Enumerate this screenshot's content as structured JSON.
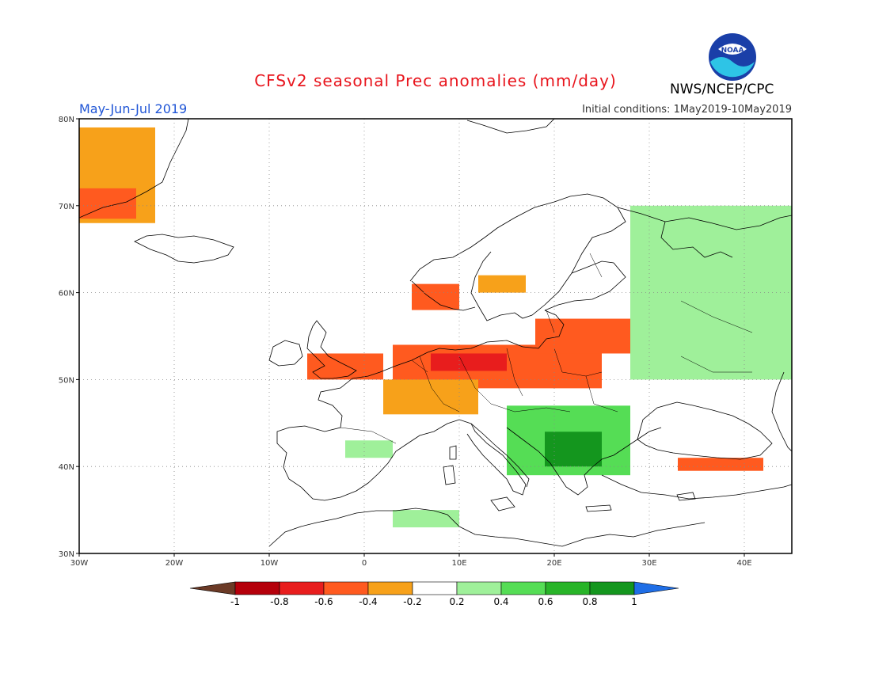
{
  "header": {
    "title": "CFSv2 seasonal Prec anomalies (mm/day)",
    "period": "May-Jun-Jul 2019",
    "initial_conditions": "Initial conditions: 1May2019-10May2019",
    "agency": "NWS/NCEP/CPC",
    "logo_text": "NOAA"
  },
  "map": {
    "lon_range": [
      -30,
      45
    ],
    "lat_range": [
      30,
      80
    ],
    "lon_ticks": [
      {
        "value": -30,
        "label": "30W"
      },
      {
        "value": -20,
        "label": "20W"
      },
      {
        "value": -10,
        "label": "10W"
      },
      {
        "value": 0,
        "label": "0"
      },
      {
        "value": 10,
        "label": "10E"
      },
      {
        "value": 20,
        "label": "20E"
      },
      {
        "value": 30,
        "label": "30E"
      },
      {
        "value": 40,
        "label": "40E"
      }
    ],
    "lat_ticks": [
      {
        "value": 30,
        "label": "30N"
      },
      {
        "value": 40,
        "label": "40N"
      },
      {
        "value": 50,
        "label": "50N"
      },
      {
        "value": 60,
        "label": "60N"
      },
      {
        "value": 70,
        "label": "70N"
      },
      {
        "value": 80,
        "label": "80N"
      }
    ],
    "grid": "dotted",
    "coastline_color": "#000000"
  },
  "colorbar": {
    "labels": [
      "-1",
      "-0.8",
      "-0.6",
      "-0.4",
      "-0.2",
      "0.2",
      "0.4",
      "0.6",
      "0.8",
      "1"
    ],
    "colors": [
      "#6b3a26",
      "#b5000b",
      "#e81d1d",
      "#ff5a1f",
      "#f7a11a",
      "#ffffff",
      "#9ff09a",
      "#55dd55",
      "#28b428",
      "#14961e",
      "#1f6ee6"
    ]
  },
  "anomaly_regions": [
    {
      "name": "greenland-dry",
      "lon": [
        -30,
        -22
      ],
      "lat": [
        68,
        79
      ],
      "value": -0.3
    },
    {
      "name": "greenland-strong",
      "lon": [
        -30,
        -24
      ],
      "lat": [
        68.5,
        72
      ],
      "value": -0.5
    },
    {
      "name": "uk-dry",
      "lon": [
        -6,
        2
      ],
      "lat": [
        50,
        53
      ],
      "value": -0.4
    },
    {
      "name": "central-europe-dry",
      "lon": [
        3,
        25
      ],
      "lat": [
        49,
        54
      ],
      "value": -0.5
    },
    {
      "name": "north-germany-strong",
      "lon": [
        7,
        15
      ],
      "lat": [
        51,
        53
      ],
      "value": -0.7
    },
    {
      "name": "france-dry",
      "lon": [
        2,
        12
      ],
      "lat": [
        46,
        50
      ],
      "value": -0.3
    },
    {
      "name": "poland-baltic-dry",
      "lon": [
        18,
        28
      ],
      "lat": [
        53,
        57
      ],
      "value": -0.4
    },
    {
      "name": "norway-dry",
      "lon": [
        5,
        10
      ],
      "lat": [
        58,
        61
      ],
      "value": -0.4
    },
    {
      "name": "sweden-dry",
      "lon": [
        12,
        17
      ],
      "lat": [
        60,
        62
      ],
      "value": -0.3
    },
    {
      "name": "russia-wet",
      "lon": [
        28,
        45
      ],
      "lat": [
        50,
        70
      ],
      "value": 0.3
    },
    {
      "name": "balkans-wet",
      "lon": [
        15,
        28
      ],
      "lat": [
        39,
        47
      ],
      "value": 0.5
    },
    {
      "name": "balkans-strong",
      "lon": [
        19,
        25
      ],
      "lat": [
        40,
        44
      ],
      "value": 0.8
    },
    {
      "name": "turkey-dry",
      "lon": [
        33,
        42
      ],
      "lat": [
        39.5,
        41
      ],
      "value": -0.5
    },
    {
      "name": "iberia-wet",
      "lon": [
        -2,
        3
      ],
      "lat": [
        41,
        43
      ],
      "value": 0.3
    },
    {
      "name": "north-africa-wet",
      "lon": [
        3,
        10
      ],
      "lat": [
        33,
        35
      ],
      "value": 0.3
    }
  ]
}
